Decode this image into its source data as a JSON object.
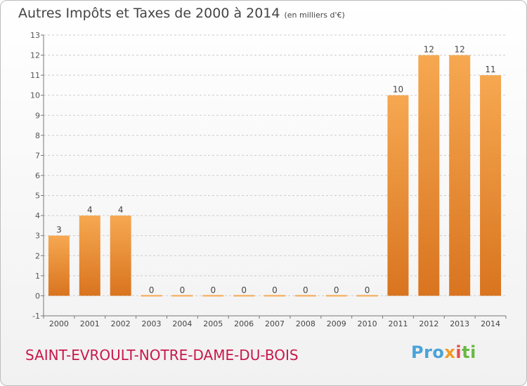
{
  "header": {
    "title": "Autres Impôts et Taxes de 2000 à 2014",
    "unit": "(en milliers d'€)"
  },
  "commune": "SAINT-EVROULT-NOTRE-DAME-DU-BOIS",
  "logo": {
    "parts": [
      "Pro",
      "x",
      "i",
      "ti"
    ]
  },
  "colors": {
    "bar_light": "#f6a851",
    "bar_dark": "#d9741f",
    "grid": "#cccccc"
  },
  "chart_data": {
    "type": "bar",
    "title": "Autres Impôts et Taxes de 2000 à 2014",
    "subtitle": "(en milliers d'€)",
    "categories": [
      "2000",
      "2001",
      "2002",
      "2003",
      "2004",
      "2005",
      "2006",
      "2007",
      "2008",
      "2009",
      "2010",
      "2011",
      "2012",
      "2013",
      "2014"
    ],
    "values": [
      3,
      4,
      4,
      0,
      0,
      0,
      0,
      0,
      0,
      0,
      0,
      10,
      12,
      12,
      11
    ],
    "ylim": [
      -1,
      13
    ],
    "yticks": [
      -1,
      0,
      1,
      2,
      3,
      4,
      5,
      6,
      7,
      8,
      9,
      10,
      11,
      12,
      13
    ],
    "grid": true,
    "xlabel": "",
    "ylabel": ""
  }
}
